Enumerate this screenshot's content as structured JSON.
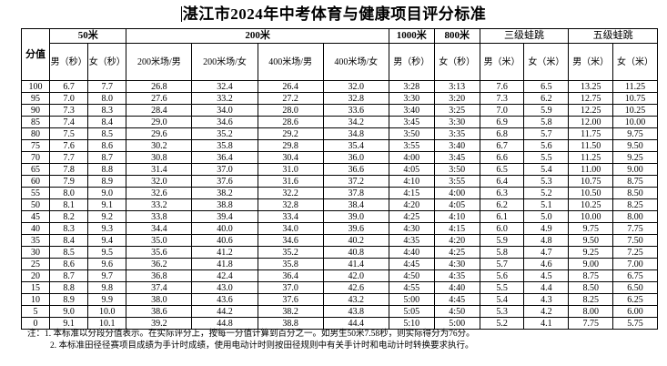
{
  "title": "湛江市2024年中考体育与健康项目评分标准",
  "header_top": [
    "分值",
    "50米",
    "200米",
    "1000米",
    "800米",
    "三级蛙跳",
    "五级蛙跳"
  ],
  "header_sub": [
    "男（秒）",
    "女（秒）",
    "200米场/男",
    "200米场/女",
    "400米场/男",
    "400米场/女",
    "男（秒）",
    "女（秒）",
    "男（米）",
    "女（米）",
    "男（米）",
    "女（米）"
  ],
  "rows": [
    [
      "100",
      "6.7",
      "7.7",
      "26.8",
      "32.4",
      "26.4",
      "32.0",
      "3:28",
      "3:13",
      "7.6",
      "6.5",
      "13.25",
      "11.25"
    ],
    [
      "95",
      "7.0",
      "8.0",
      "27.6",
      "33.2",
      "27.2",
      "32.8",
      "3:30",
      "3:20",
      "7.3",
      "6.2",
      "12.75",
      "10.75"
    ],
    [
      "90",
      "7.3",
      "8.3",
      "28.4",
      "34.0",
      "28.0",
      "33.6",
      "3:40",
      "3:25",
      "7.0",
      "5.9",
      "12.25",
      "10.25"
    ],
    [
      "85",
      "7.4",
      "8.4",
      "29.0",
      "34.6",
      "28.6",
      "34.2",
      "3:45",
      "3:30",
      "6.9",
      "5.8",
      "12.00",
      "10.00"
    ],
    [
      "80",
      "7.5",
      "8.5",
      "29.6",
      "35.2",
      "29.2",
      "34.8",
      "3:50",
      "3:35",
      "6.8",
      "5.7",
      "11.75",
      "9.75"
    ],
    [
      "75",
      "7.6",
      "8.6",
      "30.2",
      "35.8",
      "29.8",
      "35.4",
      "3:55",
      "3:40",
      "6.7",
      "5.6",
      "11.50",
      "9.50"
    ],
    [
      "70",
      "7.7",
      "8.7",
      "30.8",
      "36.4",
      "30.4",
      "36.0",
      "4:00",
      "3:45",
      "6.6",
      "5.5",
      "11.25",
      "9.25"
    ],
    [
      "65",
      "7.8",
      "8.8",
      "31.4",
      "37.0",
      "31.0",
      "36.6",
      "4:05",
      "3:50",
      "6.5",
      "5.4",
      "11.00",
      "9.00"
    ],
    [
      "60",
      "7.9",
      "8.9",
      "32.0",
      "37.6",
      "31.6",
      "37.2",
      "4:10",
      "3:55",
      "6.4",
      "5.3",
      "10.75",
      "8.75"
    ],
    [
      "55",
      "8.0",
      "9.0",
      "32.6",
      "38.2",
      "32.2",
      "37.8",
      "4:15",
      "4:00",
      "6.3",
      "5.2",
      "10.50",
      "8.50"
    ],
    [
      "50",
      "8.1",
      "9.1",
      "33.2",
      "38.8",
      "32.8",
      "38.4",
      "4:20",
      "4:05",
      "6.2",
      "5.1",
      "10.25",
      "8.25"
    ],
    [
      "45",
      "8.2",
      "9.2",
      "33.8",
      "39.4",
      "33.4",
      "39.0",
      "4:25",
      "4:10",
      "6.1",
      "5.0",
      "10.00",
      "8.00"
    ],
    [
      "40",
      "8.3",
      "9.3",
      "34.4",
      "40.0",
      "34.0",
      "39.6",
      "4:30",
      "4:15",
      "6.0",
      "4.9",
      "9.75",
      "7.75"
    ],
    [
      "35",
      "8.4",
      "9.4",
      "35.0",
      "40.6",
      "34.6",
      "40.2",
      "4:35",
      "4:20",
      "5.9",
      "4.8",
      "9.50",
      "7.50"
    ],
    [
      "30",
      "8.5",
      "9.5",
      "35.6",
      "41.2",
      "35.2",
      "40.8",
      "4:40",
      "4:25",
      "5.8",
      "4.7",
      "9.25",
      "7.25"
    ],
    [
      "25",
      "8.6",
      "9.6",
      "36.2",
      "41.8",
      "35.8",
      "41.4",
      "4:45",
      "4:30",
      "5.7",
      "4.6",
      "9.00",
      "7.00"
    ],
    [
      "20",
      "8.7",
      "9.7",
      "36.8",
      "42.4",
      "36.4",
      "42.0",
      "4:50",
      "4:35",
      "5.6",
      "4.5",
      "8.75",
      "6.75"
    ],
    [
      "15",
      "8.8",
      "9.8",
      "37.4",
      "43.0",
      "37.0",
      "42.6",
      "4:55",
      "4:40",
      "5.5",
      "4.4",
      "8.50",
      "6.50"
    ],
    [
      "10",
      "8.9",
      "9.9",
      "38.0",
      "43.6",
      "37.6",
      "43.2",
      "5:00",
      "4:45",
      "5.4",
      "4.3",
      "8.25",
      "6.25"
    ],
    [
      "5",
      "9.0",
      "10.0",
      "38.6",
      "44.2",
      "38.2",
      "43.8",
      "5:05",
      "4:50",
      "5.3",
      "4.2",
      "8.00",
      "6.00"
    ],
    [
      "0",
      "9.1",
      "10.1",
      "39.2",
      "44.8",
      "38.8",
      "44.4",
      "5:10",
      "5:00",
      "5.2",
      "4.1",
      "7.75",
      "5.75"
    ]
  ],
  "notes": [
    "注：1. 本标准以分段分值表示。在实际评分上，按每一分值计算到百分之一。如男生50米7.58秒，则实际得分为76分。",
    "2. 本标准田径径赛项目成绩为手计时成绩，使用电动计时则按田径规则中有关手计时和电动计时转换要求执行。"
  ]
}
